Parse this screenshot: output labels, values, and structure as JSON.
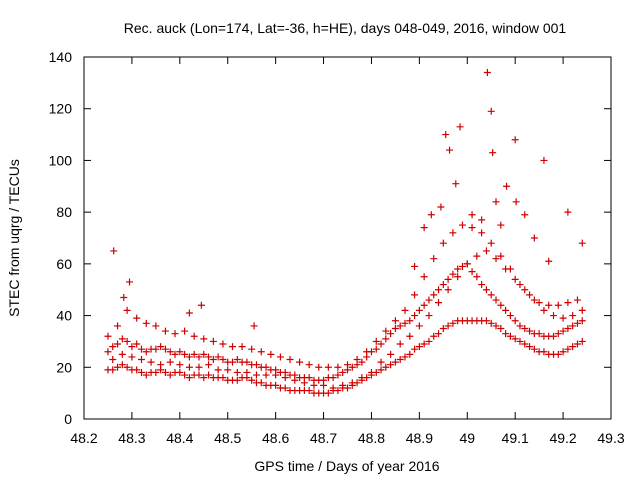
{
  "chart_data": {
    "type": "scatter",
    "title": "Rec. auck (Lon=174, Lat=-36, h=HE), days 048-049, 2016, window 001",
    "xlabel": "GPS time / Days of year 2016",
    "ylabel": "STEC from uqrg / TECUs",
    "xlim": [
      48.2,
      49.3
    ],
    "ylim": [
      0,
      140
    ],
    "xticks": [
      48.2,
      48.3,
      48.4,
      48.5,
      48.6,
      48.7,
      48.8,
      48.9,
      49.0,
      49.1,
      49.2,
      49.3
    ],
    "xtick_labels": [
      "48.2",
      "48.3",
      "48.4",
      "48.5",
      "48.6",
      "48.7",
      "48.8",
      "48.9",
      "49",
      "49.1",
      "49.2",
      "49.3"
    ],
    "yticks": [
      0,
      20,
      40,
      60,
      80,
      100,
      120,
      140
    ],
    "ytick_labels": [
      "0",
      "20",
      "40",
      "60",
      "80",
      "100",
      "120",
      "140"
    ],
    "grid": false,
    "marker": "+",
    "color": "#d00000",
    "series": [
      {
        "name": "STEC",
        "x": [
          48.25,
          48.26,
          48.27,
          48.28,
          48.29,
          48.3,
          48.31,
          48.32,
          48.33,
          48.34,
          48.35,
          48.36,
          48.37,
          48.38,
          48.39,
          48.4,
          48.41,
          48.42,
          48.43,
          48.44,
          48.45,
          48.46,
          48.47,
          48.48,
          48.49,
          48.5,
          48.51,
          48.52,
          48.53,
          48.54,
          48.55,
          48.56,
          48.57,
          48.58,
          48.59,
          48.6,
          48.61,
          48.62,
          48.63,
          48.64,
          48.65,
          48.66,
          48.67,
          48.68,
          48.69,
          48.7,
          48.71,
          48.72,
          48.73,
          48.74,
          48.75,
          48.76,
          48.77,
          48.78,
          48.79,
          48.8,
          48.81,
          48.82,
          48.83,
          48.84,
          48.85,
          48.86,
          48.87,
          48.88,
          48.89,
          48.9,
          48.91,
          48.92,
          48.93,
          48.94,
          48.95,
          48.96,
          48.97,
          48.98,
          48.99,
          49.0,
          49.01,
          49.02,
          49.03,
          49.04,
          49.05,
          49.06,
          49.07,
          49.08,
          49.09,
          49.1,
          49.11,
          49.12,
          49.13,
          49.14,
          49.15,
          49.16,
          49.17,
          49.18,
          49.19,
          49.2,
          49.21,
          49.22,
          49.23,
          49.24,
          48.25,
          48.26,
          48.27,
          48.28,
          48.29,
          48.3,
          48.31,
          48.32,
          48.33,
          48.34,
          48.35,
          48.36,
          48.37,
          48.38,
          48.39,
          48.4,
          48.41,
          48.42,
          48.43,
          48.44,
          48.45,
          48.46,
          48.47,
          48.48,
          48.49,
          48.5,
          48.51,
          48.52,
          48.53,
          48.54,
          48.55,
          48.56,
          48.57,
          48.58,
          48.59,
          48.6,
          48.61,
          48.62,
          48.63,
          48.64,
          48.65,
          48.66,
          48.67,
          48.68,
          48.69,
          48.7,
          48.71,
          48.72,
          48.73,
          48.74,
          48.75,
          48.76,
          48.77,
          48.78,
          48.79,
          48.8,
          48.81,
          48.82,
          48.83,
          48.84,
          48.85,
          48.86,
          48.87,
          48.88,
          48.89,
          48.9,
          48.91,
          48.92,
          48.93,
          48.94,
          48.95,
          48.96,
          48.97,
          48.98,
          48.99,
          49.0,
          49.01,
          49.02,
          49.03,
          49.04,
          49.05,
          49.06,
          49.07,
          49.08,
          49.09,
          49.1,
          49.11,
          49.12,
          49.13,
          49.14,
          49.15,
          49.16,
          49.17,
          49.18,
          49.19,
          49.2,
          49.21,
          49.22,
          49.23,
          49.24,
          48.25,
          48.27,
          48.29,
          48.31,
          48.33,
          48.35,
          48.37,
          48.39,
          48.41,
          48.43,
          48.45,
          48.47,
          48.49,
          48.51,
          48.53,
          48.55,
          48.57,
          48.59,
          48.61,
          48.63,
          48.65,
          48.67,
          48.69,
          48.71,
          48.73,
          48.75,
          48.77,
          48.79,
          48.81,
          48.83,
          48.85,
          48.87,
          48.89,
          48.91,
          48.93,
          48.95,
          48.97,
          48.99,
          49.01,
          49.03,
          49.05,
          49.07,
          49.09,
          49.11,
          49.13,
          49.15,
          49.17,
          49.19,
          49.21,
          49.23,
          48.26,
          48.28,
          48.3,
          48.32,
          48.34,
          48.36,
          48.38,
          48.4,
          48.42,
          48.44,
          48.46,
          48.48,
          48.5,
          48.52,
          48.54,
          48.56,
          48.58,
          48.6,
          48.62,
          48.64,
          48.66,
          48.68,
          48.7,
          48.72,
          48.74,
          48.76,
          48.78,
          48.8,
          48.82,
          48.84,
          48.86,
          48.88,
          48.9,
          48.92,
          48.94,
          48.96,
          48.98,
          49.0,
          49.02,
          49.04,
          49.06,
          49.08,
          49.1,
          49.12,
          49.14,
          49.16,
          49.18,
          49.2,
          49.22,
          49.24,
          48.262,
          48.283,
          48.295,
          48.42,
          48.445,
          48.555,
          48.89,
          48.955,
          48.963,
          48.976,
          48.985,
          49.01,
          49.03,
          49.042,
          49.05,
          49.053,
          49.06,
          49.082,
          49.1,
          49.102,
          49.16,
          49.21,
          49.24,
          48.945,
          48.925,
          49.14,
          49.17,
          48.91,
          49.07,
          49.12
        ],
        "y": [
          19,
          19,
          20,
          21,
          20,
          19,
          19,
          18,
          17,
          18,
          18,
          19,
          18,
          17,
          18,
          18,
          17,
          16,
          17,
          17,
          16,
          17,
          16,
          16,
          16,
          15,
          15,
          15,
          16,
          16,
          15,
          14,
          14,
          13,
          13,
          13,
          12,
          12,
          11,
          11,
          11,
          11,
          11,
          10,
          10,
          10,
          10,
          11,
          11,
          12,
          12,
          13,
          14,
          15,
          16,
          17,
          18,
          19,
          20,
          21,
          22,
          23,
          24,
          25,
          27,
          28,
          29,
          30,
          32,
          33,
          35,
          36,
          37,
          38,
          38,
          38,
          38,
          38,
          38,
          38,
          37,
          36,
          35,
          33,
          32,
          31,
          30,
          29,
          28,
          27,
          26,
          26,
          25,
          25,
          25,
          26,
          27,
          28,
          29,
          30,
          26,
          28,
          29,
          31,
          30,
          28,
          29,
          27,
          26,
          27,
          27,
          28,
          27,
          26,
          25,
          26,
          25,
          24,
          25,
          24,
          25,
          24,
          23,
          24,
          23,
          22,
          22,
          23,
          22,
          22,
          21,
          21,
          20,
          20,
          19,
          19,
          18,
          18,
          17,
          17,
          16,
          16,
          16,
          15,
          15,
          15,
          16,
          16,
          17,
          18,
          19,
          20,
          21,
          22,
          24,
          26,
          27,
          29,
          31,
          33,
          35,
          36,
          37,
          38,
          40,
          42,
          44,
          46,
          48,
          50,
          52,
          54,
          56,
          58,
          59,
          60,
          57,
          55,
          52,
          50,
          48,
          46,
          44,
          42,
          40,
          38,
          36,
          35,
          34,
          33,
          33,
          32,
          32,
          32,
          33,
          34,
          35,
          36,
          37,
          38,
          32,
          36,
          42,
          39,
          37,
          36,
          34,
          33,
          34,
          32,
          31,
          30,
          29,
          28,
          28,
          27,
          26,
          25,
          24,
          23,
          22,
          21,
          20,
          20,
          20,
          21,
          23,
          26,
          30,
          34,
          38,
          42,
          48,
          55,
          62,
          68,
          72,
          75,
          74,
          72,
          68,
          63,
          58,
          52,
          48,
          45,
          44,
          44,
          45,
          46,
          23,
          25,
          24,
          23,
          22,
          21,
          22,
          21,
          20,
          20,
          21,
          19,
          19,
          18,
          18,
          17,
          17,
          17,
          16,
          15,
          14,
          13,
          13,
          12,
          13,
          14,
          16,
          18,
          22,
          25,
          29,
          32,
          36,
          40,
          45,
          50,
          55,
          60,
          63,
          65,
          62,
          58,
          54,
          50,
          46,
          42,
          40,
          39,
          40,
          42,
          65,
          47,
          53,
          41,
          44,
          36,
          59,
          110,
          104,
          91,
          113,
          79,
          77,
          134,
          119,
          103,
          84,
          90,
          108,
          84,
          100,
          80,
          68,
          82,
          79,
          70,
          61,
          74,
          75,
          79
        ]
      }
    ]
  }
}
